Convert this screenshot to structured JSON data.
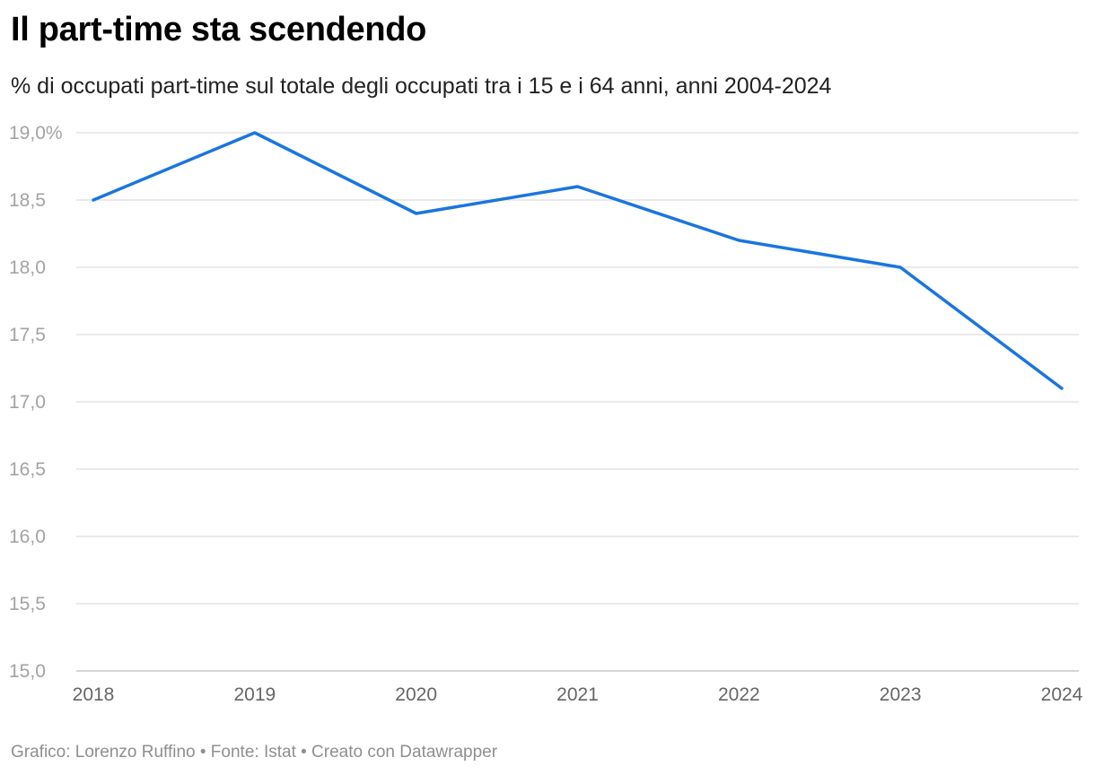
{
  "title": "Il part-time sta scendendo",
  "subtitle": "% di occupati part-time sul totale degli occupati tra i 15 e i 64 anni, anni 2004-2024",
  "footer": {
    "text": "Grafico: Lorenzo Ruffino • Fonte: Istat • Creato con Datawrapper"
  },
  "colors": {
    "line": "#1a75e0",
    "grid": "#dedede",
    "axis": "#c8c8c8"
  },
  "chart_data": {
    "type": "line",
    "categories": [
      "2018",
      "2019",
      "2020",
      "2021",
      "2022",
      "2023",
      "2024"
    ],
    "series": [
      {
        "values": [
          18.5,
          19.0,
          18.4,
          18.6,
          18.2,
          18.0,
          17.1
        ]
      }
    ],
    "yticks": [
      15.0,
      15.5,
      16.0,
      16.5,
      17.0,
      17.5,
      18.0,
      18.5,
      19.0
    ],
    "ytick_labels": [
      "15,0",
      "15,5",
      "16,0",
      "16,5",
      "17,0",
      "17,5",
      "18,0",
      "18,5",
      "19,0%"
    ],
    "ylim": [
      15.0,
      19.0
    ],
    "grid": true,
    "legend": "none"
  }
}
